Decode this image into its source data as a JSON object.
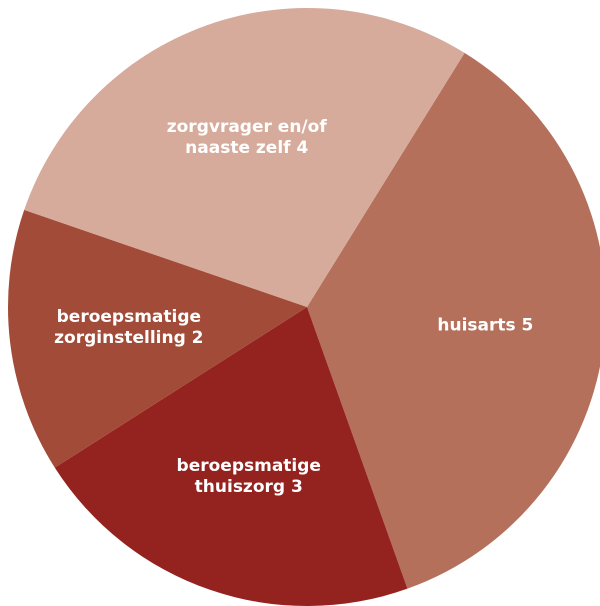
{
  "chart_data": {
    "type": "pie",
    "categories": [
      "huisarts",
      "beroepsmatige thuiszorg",
      "beroepsmatige zorginstelling",
      "zorgvrager en/of naaste zelf"
    ],
    "values": [
      5,
      3,
      2,
      4
    ],
    "colors": [
      "#b5705c",
      "#94231f",
      "#a24b38",
      "#d6ab9b"
    ]
  }
}
